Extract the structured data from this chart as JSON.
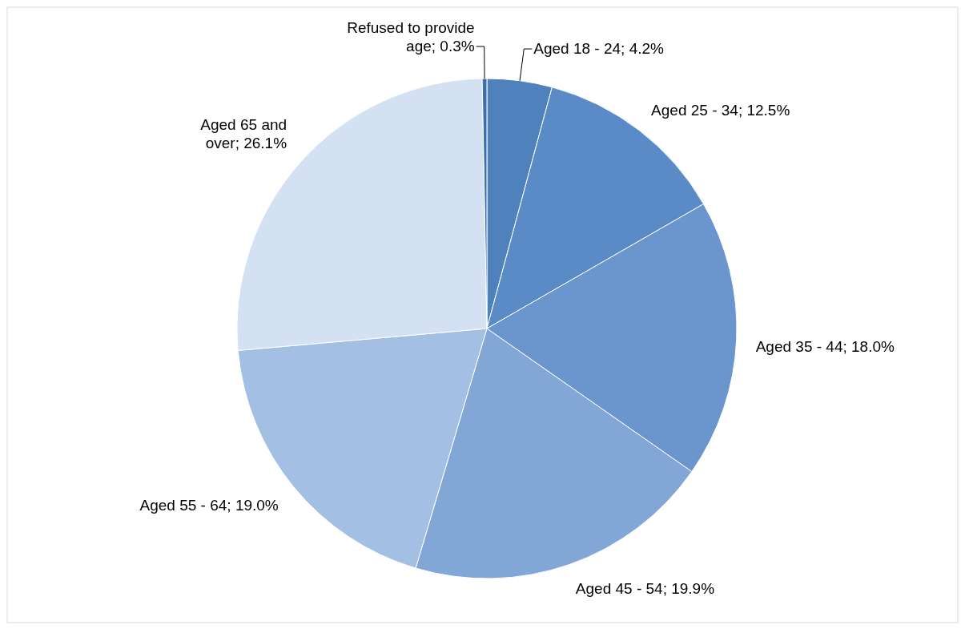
{
  "chart_data": {
    "type": "pie",
    "categories": [
      "Aged 18 - 24",
      "Aged 25 - 34",
      "Aged 35 - 44",
      "Aged 45 - 54",
      "Aged 55 - 64",
      "Aged 65 and over",
      "Refused to provide age"
    ],
    "values": [
      4.2,
      12.5,
      18.0,
      19.9,
      19.0,
      26.1,
      0.3
    ],
    "value_labels": [
      "4.2%",
      "12.5%",
      "18.0%",
      "19.9%",
      "19.0%",
      "26.1%",
      "0.3%"
    ],
    "colors": [
      "#4f81bd",
      "#5b8bc7",
      "#6a95cd",
      "#82a6d6",
      "#a3bfe4",
      "#d3e1f3",
      "#3f6fa8"
    ]
  }
}
